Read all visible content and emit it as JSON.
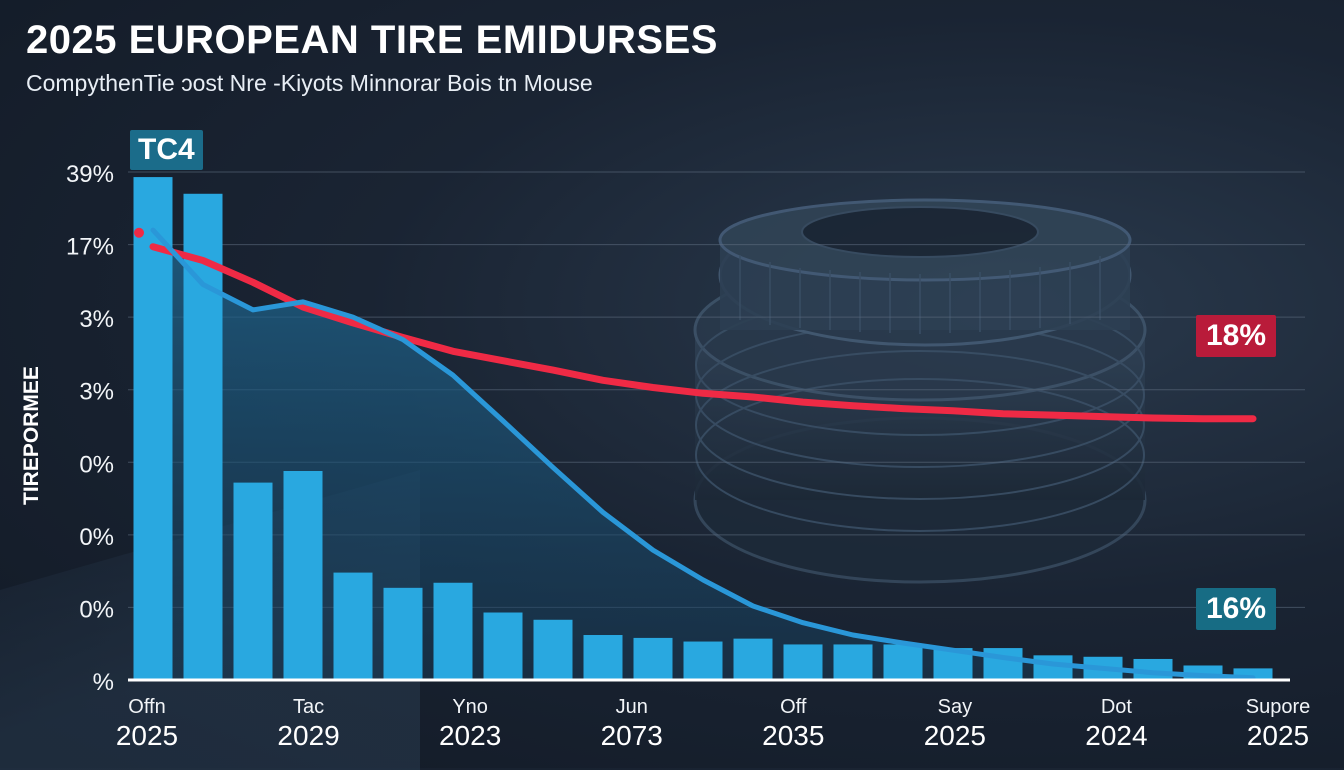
{
  "chart_data": {
    "type": "bar",
    "title": "2025 EUROPEAN TIRE EMIDURSES",
    "subtitle": "CompythenTie ɔost Nre -Kiyots Minnorar Bois tn Mouse",
    "ylabel": "TIREPORMEE",
    "y_tick_labels": [
      "39%",
      "17%",
      "3%",
      "3%",
      "0%",
      "0%",
      "0%",
      "%"
    ],
    "x_ticks": [
      {
        "top": "Offn",
        "bottom": "2025"
      },
      {
        "top": "Tac",
        "bottom": "2029"
      },
      {
        "top": "Yno",
        "bottom": "2023"
      },
      {
        "top": "Jun",
        "bottom": "2073"
      },
      {
        "top": "Off",
        "bottom": "2035"
      },
      {
        "top": "Say",
        "bottom": "2025"
      },
      {
        "top": "Dot",
        "bottom": "2024"
      },
      {
        "top": "Supore",
        "bottom": "2025"
      }
    ],
    "grid": true,
    "ylim": [
      0,
      7
    ],
    "series": [
      {
        "kind": "bar",
        "color": "#29a8e0",
        "values": [
          6.93,
          6.7,
          2.72,
          2.88,
          1.48,
          1.27,
          1.34,
          0.93,
          0.83,
          0.62,
          0.58,
          0.53,
          0.57,
          0.49,
          0.49,
          0.49,
          0.44,
          0.44,
          0.34,
          0.32,
          0.29,
          0.2,
          0.16
        ]
      },
      {
        "kind": "line",
        "color": "#ef2a45",
        "x": [
          0,
          1,
          2,
          3,
          4,
          5,
          6,
          7,
          8,
          9,
          10,
          11,
          12,
          13,
          14,
          15,
          16,
          17,
          18,
          19,
          20,
          21,
          22
        ],
        "values": [
          5.97,
          5.78,
          5.48,
          5.14,
          4.92,
          4.72,
          4.53,
          4.4,
          4.27,
          4.13,
          4.03,
          3.95,
          3.9,
          3.83,
          3.78,
          3.74,
          3.71,
          3.67,
          3.65,
          3.63,
          3.61,
          3.6,
          3.6
        ]
      },
      {
        "kind": "line",
        "color": "#2a97d8",
        "x": [
          0,
          1,
          2,
          3,
          4,
          5,
          6,
          7,
          8,
          9,
          10,
          11,
          12,
          13,
          14,
          15,
          16,
          17,
          18,
          19,
          20,
          21,
          22
        ],
        "values": [
          6.2,
          5.45,
          5.1,
          5.21,
          5.0,
          4.69,
          4.2,
          3.57,
          2.93,
          2.31,
          1.79,
          1.38,
          1.02,
          0.79,
          0.62,
          0.51,
          0.41,
          0.31,
          0.22,
          0.16,
          0.1,
          0.06,
          0.03
        ]
      }
    ],
    "annotations": [
      {
        "text": "TC4",
        "color": "#1b6c8a"
      },
      {
        "text": "18%",
        "color": "#b91b3a"
      },
      {
        "text": "16%",
        "color": "#176c84"
      }
    ]
  }
}
